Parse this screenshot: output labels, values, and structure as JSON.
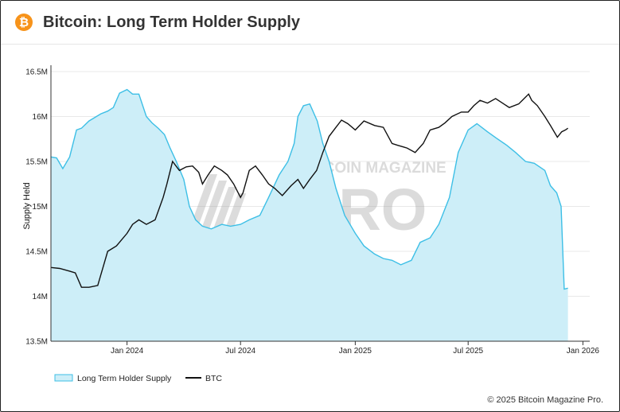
{
  "header": {
    "logo_symbol": "₿",
    "title": "Bitcoin: Long Term Holder Supply"
  },
  "footer": {
    "copyright": "© 2025 Bitcoin Magazine Pro."
  },
  "watermark": {
    "line1": "BITCOIN MAGAZINE",
    "line2": "PRO"
  },
  "colors": {
    "lth_fill": "#cdeef8",
    "lth_line": "#3dbfe6",
    "btc_line": "#111111",
    "brand": "#f7931a"
  },
  "chart_data": {
    "type": "line",
    "title": "",
    "ylabel": "Supply Held",
    "xlabel": "",
    "ylim": [
      13500000,
      16500000
    ],
    "xlim": [
      "2023-09-01",
      "2026-01-12"
    ],
    "y_ticks": [
      {
        "value": 13500000,
        "label": "13.5M"
      },
      {
        "value": 14000000,
        "label": "14M"
      },
      {
        "value": 14500000,
        "label": "14.5M"
      },
      {
        "value": 15000000,
        "label": "15M"
      },
      {
        "value": 15500000,
        "label": "15.5M"
      },
      {
        "value": 16000000,
        "label": "16M"
      },
      {
        "value": 16500000,
        "label": "16.5M"
      }
    ],
    "x_ticks": [
      {
        "date": "2024-01-01",
        "label": "Jan 2024"
      },
      {
        "date": "2024-07-01",
        "label": "Jul 2024"
      },
      {
        "date": "2025-01-01",
        "label": "Jan 2025"
      },
      {
        "date": "2025-07-01",
        "label": "Jul 2025"
      },
      {
        "date": "2026-01-01",
        "label": "Jan 2026"
      }
    ],
    "legend": {
      "position": "bottom-left"
    },
    "grid": true,
    "series": [
      {
        "name": "Long Term Holder Supply",
        "type": "area",
        "x": [
          "2023-09-01",
          "2023-09-10",
          "2023-09-20",
          "2023-10-01",
          "2023-10-12",
          "2023-10-20",
          "2023-11-01",
          "2023-11-20",
          "2023-12-01",
          "2023-12-10",
          "2023-12-20",
          "2024-01-01",
          "2024-01-10",
          "2024-01-20",
          "2024-02-01",
          "2024-02-10",
          "2024-02-20",
          "2024-03-01",
          "2024-03-10",
          "2024-03-20",
          "2024-04-01",
          "2024-04-10",
          "2024-04-20",
          "2024-05-01",
          "2024-05-15",
          "2024-06-01",
          "2024-06-15",
          "2024-07-01",
          "2024-07-15",
          "2024-08-01",
          "2024-08-15",
          "2024-09-01",
          "2024-09-15",
          "2024-09-25",
          "2024-10-01",
          "2024-10-10",
          "2024-10-20",
          "2024-11-01",
          "2024-11-10",
          "2024-11-20",
          "2024-12-01",
          "2024-12-15",
          "2025-01-01",
          "2025-01-15",
          "2025-02-01",
          "2025-02-15",
          "2025-03-01",
          "2025-03-15",
          "2025-04-01",
          "2025-04-15",
          "2025-05-01",
          "2025-05-15",
          "2025-06-01",
          "2025-06-15",
          "2025-07-01",
          "2025-07-15",
          "2025-08-01",
          "2025-08-15",
          "2025-09-01",
          "2025-09-15",
          "2025-10-01",
          "2025-10-15",
          "2025-11-01",
          "2025-11-10",
          "2025-11-20",
          "2025-11-27",
          "2025-12-02",
          "2025-12-08"
        ],
        "y": [
          15550000,
          15540000,
          15420000,
          15550000,
          15850000,
          15870000,
          15950000,
          16030000,
          16060000,
          16100000,
          16260000,
          16300000,
          16250000,
          16250000,
          16000000,
          15930000,
          15870000,
          15800000,
          15650000,
          15500000,
          15300000,
          15000000,
          14850000,
          14780000,
          14750000,
          14800000,
          14780000,
          14800000,
          14850000,
          14900000,
          15100000,
          15350000,
          15500000,
          15700000,
          16000000,
          16120000,
          16140000,
          15950000,
          15700000,
          15500000,
          15200000,
          14900000,
          14700000,
          14560000,
          14470000,
          14420000,
          14400000,
          14350000,
          14400000,
          14600000,
          14650000,
          14800000,
          15100000,
          15600000,
          15850000,
          15920000,
          15830000,
          15760000,
          15680000,
          15600000,
          15500000,
          15480000,
          15400000,
          15230000,
          15150000,
          15000000,
          14080000,
          14090000
        ]
      },
      {
        "name": "BTC",
        "type": "line",
        "x": [
          "2023-09-01",
          "2023-09-15",
          "2023-10-01",
          "2023-10-10",
          "2023-10-20",
          "2023-11-01",
          "2023-11-15",
          "2023-12-01",
          "2023-12-15",
          "2024-01-01",
          "2024-01-10",
          "2024-01-20",
          "2024-02-01",
          "2024-02-15",
          "2024-02-28",
          "2024-03-05",
          "2024-03-14",
          "2024-03-25",
          "2024-04-05",
          "2024-04-15",
          "2024-04-25",
          "2024-05-01",
          "2024-05-10",
          "2024-05-20",
          "2024-06-01",
          "2024-06-10",
          "2024-06-20",
          "2024-07-01",
          "2024-07-05",
          "2024-07-15",
          "2024-07-25",
          "2024-08-05",
          "2024-08-15",
          "2024-08-25",
          "2024-09-06",
          "2024-09-20",
          "2024-10-01",
          "2024-10-10",
          "2024-10-20",
          "2024-10-31",
          "2024-11-10",
          "2024-11-20",
          "2024-12-01",
          "2024-12-10",
          "2024-12-20",
          "2025-01-01",
          "2025-01-15",
          "2025-02-01",
          "2025-02-15",
          "2025-03-01",
          "2025-03-10",
          "2025-03-25",
          "2025-04-07",
          "2025-04-20",
          "2025-05-01",
          "2025-05-15",
          "2025-05-25",
          "2025-06-05",
          "2025-06-20",
          "2025-07-01",
          "2025-07-10",
          "2025-07-20",
          "2025-08-01",
          "2025-08-14",
          "2025-08-25",
          "2025-09-05",
          "2025-09-20",
          "2025-10-06",
          "2025-10-11",
          "2025-10-20",
          "2025-11-01",
          "2025-11-10",
          "2025-11-21",
          "2025-11-28",
          "2025-12-04",
          "2025-12-08"
        ],
        "y": [
          14320000,
          14310000,
          14280000,
          14260000,
          14100000,
          14100000,
          14120000,
          14500000,
          14560000,
          14700000,
          14800000,
          14850000,
          14800000,
          14850000,
          15100000,
          15250000,
          15500000,
          15400000,
          15440000,
          15450000,
          15380000,
          15250000,
          15350000,
          15450000,
          15400000,
          15350000,
          15250000,
          15100000,
          15150000,
          15400000,
          15450000,
          15350000,
          15250000,
          15200000,
          15120000,
          15230000,
          15300000,
          15200000,
          15300000,
          15400000,
          15600000,
          15780000,
          15880000,
          15960000,
          15920000,
          15850000,
          15950000,
          15900000,
          15880000,
          15700000,
          15680000,
          15650000,
          15600000,
          15700000,
          15850000,
          15880000,
          15930000,
          16000000,
          16050000,
          16050000,
          16120000,
          16180000,
          16150000,
          16200000,
          16150000,
          16100000,
          16140000,
          16250000,
          16180000,
          16120000,
          16000000,
          15900000,
          15770000,
          15830000,
          15850000,
          15870000
        ]
      }
    ]
  }
}
